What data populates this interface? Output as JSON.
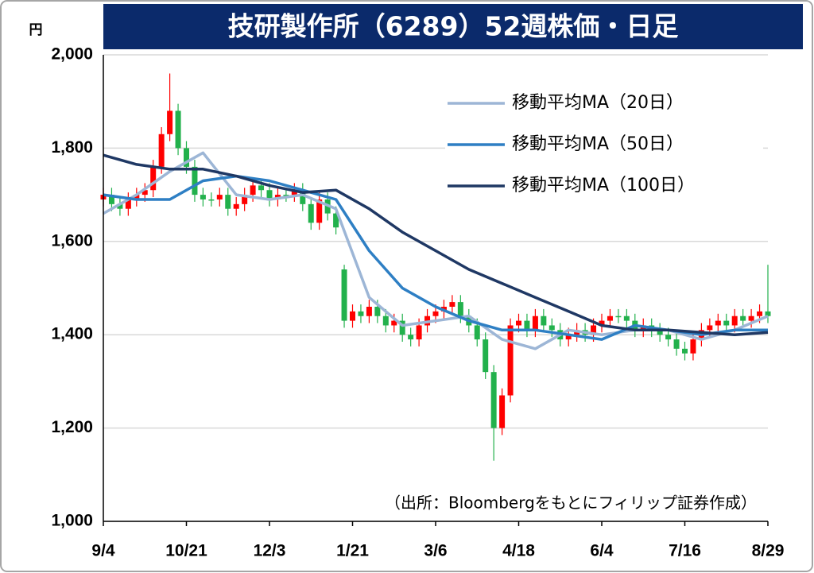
{
  "chart_data": {
    "type": "candlestick",
    "title": "技研製作所（6289）52週株価・日足",
    "ylabel": "円",
    "note": "（出所：Bloombergをもとにフィリップ証券作成）",
    "ylim": [
      1000,
      2000
    ],
    "yticks": [
      {
        "value": 1000,
        "label": "1,000"
      },
      {
        "value": 1200,
        "label": "1,200"
      },
      {
        "value": 1400,
        "label": "1,400"
      },
      {
        "value": 1600,
        "label": "1,600"
      },
      {
        "value": 1800,
        "label": "1,800"
      },
      {
        "value": 2000,
        "label": "2,000"
      }
    ],
    "xlim": [
      0,
      240
    ],
    "xticks": [
      {
        "value": 0,
        "label": "9/4"
      },
      {
        "value": 30,
        "label": "10/21"
      },
      {
        "value": 60,
        "label": "12/3"
      },
      {
        "value": 90,
        "label": "1/21"
      },
      {
        "value": 120,
        "label": "3/6"
      },
      {
        "value": 150,
        "label": "4/18"
      },
      {
        "value": 180,
        "label": "6/4"
      },
      {
        "value": 210,
        "label": "7/16"
      },
      {
        "value": 240,
        "label": "8/29"
      }
    ],
    "grid": true,
    "legend": "upper right",
    "up_color": "#ff0000",
    "down_color": "#22b14c",
    "candles": {
      "x": [
        0,
        3,
        6,
        9,
        12,
        15,
        18,
        21,
        24,
        27,
        30,
        33,
        36,
        39,
        42,
        45,
        48,
        51,
        54,
        57,
        60,
        63,
        66,
        69,
        72,
        75,
        78,
        81,
        84,
        87,
        90,
        93,
        96,
        99,
        102,
        105,
        108,
        111,
        114,
        117,
        120,
        123,
        126,
        129,
        132,
        135,
        138,
        141,
        144,
        147,
        150,
        153,
        156,
        159,
        162,
        165,
        168,
        171,
        174,
        177,
        180,
        183,
        186,
        189,
        192,
        195,
        198,
        201,
        204,
        207,
        210,
        213,
        216,
        219,
        222,
        225,
        228,
        231,
        234,
        237,
        240
      ],
      "open": [
        1690,
        1700,
        1680,
        1670,
        1690,
        1700,
        1710,
        1760,
        1830,
        1880,
        1800,
        1760,
        1700,
        1690,
        1690,
        1700,
        1670,
        1680,
        1700,
        1720,
        1710,
        1690,
        1700,
        1700,
        1710,
        1680,
        1640,
        1690,
        1660,
        1540,
        1430,
        1450,
        1440,
        1460,
        1440,
        1420,
        1430,
        1400,
        1390,
        1420,
        1440,
        1450,
        1460,
        1470,
        1440,
        1420,
        1390,
        1320,
        1200,
        1270,
        1420,
        1430,
        1410,
        1440,
        1420,
        1410,
        1390,
        1400,
        1410,
        1400,
        1420,
        1430,
        1440,
        1440,
        1430,
        1410,
        1420,
        1410,
        1400,
        1390,
        1370,
        1360,
        1390,
        1410,
        1420,
        1430,
        1420,
        1440,
        1430,
        1440,
        1450
      ],
      "high": [
        1715,
        1715,
        1695,
        1705,
        1715,
        1725,
        1775,
        1845,
        1960,
        1895,
        1815,
        1775,
        1715,
        1705,
        1715,
        1715,
        1695,
        1715,
        1735,
        1735,
        1725,
        1715,
        1715,
        1725,
        1725,
        1695,
        1705,
        1705,
        1675,
        1550,
        1465,
        1465,
        1475,
        1475,
        1455,
        1445,
        1445,
        1415,
        1435,
        1455,
        1465,
        1475,
        1485,
        1485,
        1455,
        1435,
        1405,
        1335,
        1285,
        1435,
        1445,
        1445,
        1455,
        1455,
        1435,
        1425,
        1415,
        1425,
        1425,
        1435,
        1445,
        1455,
        1455,
        1455,
        1445,
        1435,
        1435,
        1425,
        1415,
        1405,
        1385,
        1405,
        1425,
        1435,
        1445,
        1445,
        1455,
        1455,
        1455,
        1465,
        1550
      ],
      "low": [
        1675,
        1665,
        1655,
        1655,
        1675,
        1685,
        1695,
        1745,
        1815,
        1785,
        1745,
        1685,
        1675,
        1675,
        1675,
        1655,
        1655,
        1665,
        1685,
        1695,
        1675,
        1675,
        1685,
        1685,
        1665,
        1625,
        1625,
        1645,
        1615,
        1415,
        1415,
        1425,
        1425,
        1425,
        1405,
        1405,
        1385,
        1375,
        1375,
        1405,
        1425,
        1435,
        1445,
        1425,
        1405,
        1375,
        1305,
        1130,
        1185,
        1255,
        1405,
        1395,
        1395,
        1405,
        1395,
        1375,
        1375,
        1385,
        1385,
        1385,
        1405,
        1415,
        1425,
        1415,
        1395,
        1395,
        1395,
        1385,
        1375,
        1355,
        1345,
        1345,
        1375,
        1395,
        1405,
        1405,
        1405,
        1415,
        1415,
        1425,
        1425
      ],
      "close": [
        1700,
        1680,
        1670,
        1690,
        1700,
        1710,
        1760,
        1830,
        1880,
        1800,
        1760,
        1700,
        1690,
        1690,
        1700,
        1670,
        1680,
        1700,
        1720,
        1710,
        1690,
        1700,
        1700,
        1710,
        1680,
        1640,
        1690,
        1660,
        1630,
        1430,
        1450,
        1440,
        1460,
        1440,
        1420,
        1430,
        1400,
        1390,
        1420,
        1440,
        1450,
        1460,
        1470,
        1440,
        1420,
        1390,
        1320,
        1200,
        1270,
        1420,
        1430,
        1410,
        1440,
        1420,
        1410,
        1390,
        1400,
        1410,
        1400,
        1420,
        1430,
        1440,
        1440,
        1430,
        1410,
        1420,
        1410,
        1400,
        1390,
        1370,
        1360,
        1390,
        1410,
        1420,
        1430,
        1420,
        1440,
        1430,
        1440,
        1450,
        1440
      ]
    },
    "series": [
      {
        "name": "移動平均MA（20日）",
        "color": "#9db6d6",
        "x": [
          0,
          12,
          24,
          36,
          48,
          60,
          72,
          84,
          96,
          108,
          120,
          132,
          144,
          156,
          168,
          180,
          192,
          204,
          216,
          228,
          240
        ],
        "values": [
          1660,
          1700,
          1750,
          1790,
          1700,
          1690,
          1700,
          1670,
          1480,
          1420,
          1430,
          1440,
          1390,
          1370,
          1410,
          1400,
          1410,
          1410,
          1390,
          1410,
          1440
        ]
      },
      {
        "name": "移動平均MA（50日）",
        "color": "#2e7fc4",
        "x": [
          0,
          12,
          24,
          36,
          48,
          60,
          72,
          84,
          96,
          108,
          120,
          132,
          144,
          156,
          168,
          180,
          192,
          204,
          216,
          228,
          240
        ],
        "values": [
          1700,
          1690,
          1690,
          1730,
          1740,
          1730,
          1710,
          1690,
          1580,
          1500,
          1460,
          1430,
          1410,
          1410,
          1400,
          1390,
          1420,
          1410,
          1400,
          1410,
          1410
        ]
      },
      {
        "name": "移動平均MA（100日）",
        "color": "#1f3864",
        "x": [
          0,
          12,
          24,
          36,
          48,
          60,
          72,
          84,
          96,
          108,
          120,
          132,
          144,
          156,
          168,
          180,
          192,
          204,
          216,
          228,
          240
        ],
        "values": [
          1785,
          1765,
          1755,
          1755,
          1740,
          1720,
          1705,
          1710,
          1670,
          1620,
          1580,
          1540,
          1510,
          1480,
          1450,
          1420,
          1410,
          1410,
          1405,
          1400,
          1405
        ]
      }
    ]
  }
}
